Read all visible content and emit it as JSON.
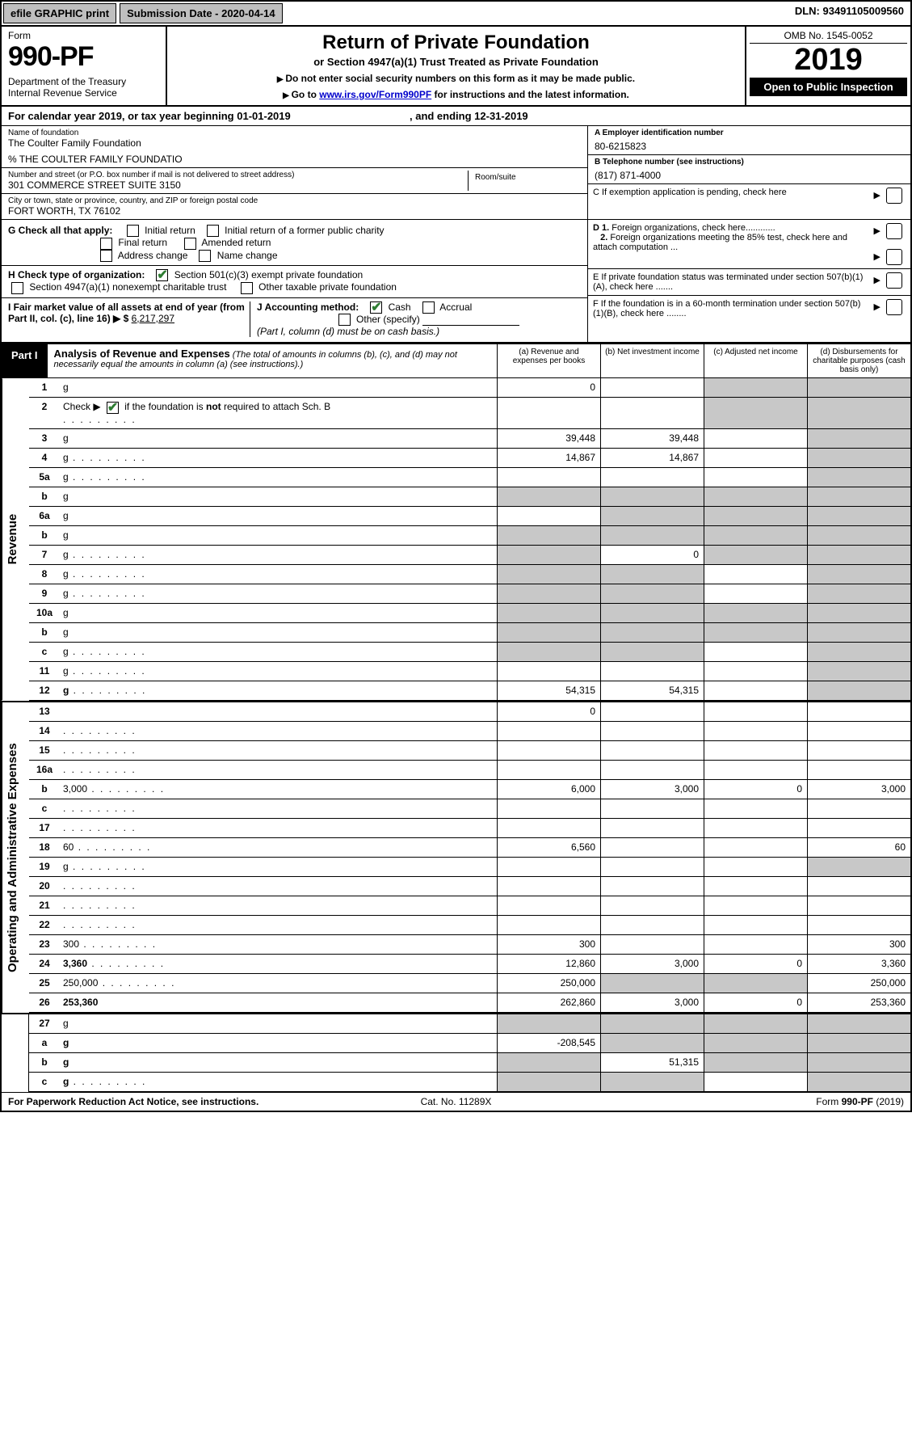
{
  "topbar": {
    "efile": "efile GRAPHIC print",
    "subdate_label": "Submission Date - 2020-04-14",
    "dln": "DLN: 93491105009560"
  },
  "header": {
    "form_word": "Form",
    "form_number": "990-PF",
    "dept": "Department of the Treasury\nInternal Revenue Service",
    "title": "Return of Private Foundation",
    "subtitle": "or Section 4947(a)(1) Trust Treated as Private Foundation",
    "note1": "Do not enter social security numbers on this form as it may be made public.",
    "note2_pre": "Go to ",
    "note2_link": "www.irs.gov/Form990PF",
    "note2_post": " for instructions and the latest information.",
    "omb": "OMB No. 1545-0052",
    "year": "2019",
    "open": "Open to Public Inspection"
  },
  "calyear": {
    "pre": "For calendar year 2019, or tax year beginning ",
    "begin": "01-01-2019",
    "mid": ", and ending ",
    "end": "12-31-2019"
  },
  "info": {
    "name_label": "Name of foundation",
    "name": "The Coulter Family Foundation",
    "care_of": "% THE COULTER FAMILY FOUNDATIO",
    "addr_label": "Number and street (or P.O. box number if mail is not delivered to street address)",
    "addr": "301 COMMERCE STREET SUITE 3150",
    "room_label": "Room/suite",
    "city_label": "City or town, state or province, country, and ZIP or foreign postal code",
    "city": "FORT WORTH, TX  76102",
    "ein_label": "A Employer identification number",
    "ein": "80-6215823",
    "phone_label": "B Telephone number (see instructions)",
    "phone": "(817) 871-4000",
    "c_label": "C If exemption application is pending, check here"
  },
  "checks": {
    "g_label": "G Check all that apply:",
    "g_items": [
      "Initial return",
      "Initial return of a former public charity",
      "Final return",
      "Amended return",
      "Address change",
      "Name change"
    ],
    "h_label": "H Check type of organization:",
    "h_items": [
      "Section 501(c)(3) exempt private foundation",
      "Section 4947(a)(1) nonexempt charitable trust",
      "Other taxable private foundation"
    ],
    "i_label": "I Fair market value of all assets at end of year (from Part II, col. (c), line 16) ▶ $",
    "i_val": "6,217,297",
    "j_label": "J Accounting method:",
    "j_items": [
      "Cash",
      "Accrual",
      "Other (specify)"
    ],
    "j_note": "(Part I, column (d) must be on cash basis.)",
    "d1": "D 1. Foreign organizations, check here............",
    "d2": "2. Foreign organizations meeting the 85% test, check here and attach computation ...",
    "e": "E  If private foundation status was terminated under section 507(b)(1)(A), check here .......",
    "f": "F  If the foundation is in a 60-month termination under section 507(b)(1)(B), check here ........"
  },
  "part1": {
    "badge": "Part I",
    "title": "Analysis of Revenue and Expenses",
    "title_note": "(The total of amounts in columns (b), (c), and (d) may not necessarily equal the amounts in column (a) (see instructions).)",
    "col_a": "(a)   Revenue and expenses per books",
    "col_b": "(b)  Net investment income",
    "col_c": "(c)  Adjusted net income",
    "col_d": "(d)  Disbursements for charitable purposes (cash basis only)"
  },
  "vlabels": {
    "revenue": "Revenue",
    "expenses": "Operating and Administrative Expenses"
  },
  "rows": [
    {
      "n": "1",
      "d": "g",
      "a": "0",
      "b": "",
      "c": "g"
    },
    {
      "n": "2",
      "d": "g",
      "dots": true,
      "a": "",
      "b": "",
      "c": "g",
      "checked": true
    },
    {
      "n": "3",
      "d": "g",
      "a": "39,448",
      "b": "39,448",
      "c": ""
    },
    {
      "n": "4",
      "d": "g",
      "dots": true,
      "a": "14,867",
      "b": "14,867",
      "c": ""
    },
    {
      "n": "5a",
      "d": "g",
      "dots": true,
      "a": "",
      "b": "",
      "c": ""
    },
    {
      "n": "b",
      "d": "g",
      "a": "g",
      "b": "g",
      "c": "g"
    },
    {
      "n": "6a",
      "d": "g",
      "a": "",
      "b": "g",
      "c": "g"
    },
    {
      "n": "b",
      "d": "g",
      "a": "g",
      "b": "g",
      "c": "g"
    },
    {
      "n": "7",
      "d": "g",
      "dots": true,
      "a": "g",
      "b": "0",
      "c": "g"
    },
    {
      "n": "8",
      "d": "g",
      "dots": true,
      "a": "g",
      "b": "g",
      "c": ""
    },
    {
      "n": "9",
      "d": "g",
      "dots": true,
      "a": "g",
      "b": "g",
      "c": ""
    },
    {
      "n": "10a",
      "d": "g",
      "a": "g",
      "b": "g",
      "c": "g"
    },
    {
      "n": "b",
      "d": "g",
      "a": "g",
      "b": "g",
      "c": "g"
    },
    {
      "n": "c",
      "d": "g",
      "dots": true,
      "a": "g",
      "b": "g",
      "c": ""
    },
    {
      "n": "11",
      "d": "g",
      "dots": true,
      "a": "",
      "b": "",
      "c": ""
    },
    {
      "n": "12",
      "d": "g",
      "dots": true,
      "bold": true,
      "a": "54,315",
      "b": "54,315",
      "c": ""
    }
  ],
  "rows2": [
    {
      "n": "13",
      "d": "",
      "a": "0",
      "b": "",
      "c": ""
    },
    {
      "n": "14",
      "d": "",
      "dots": true,
      "a": "",
      "b": "",
      "c": ""
    },
    {
      "n": "15",
      "d": "",
      "dots": true,
      "a": "",
      "b": "",
      "c": ""
    },
    {
      "n": "16a",
      "d": "",
      "dots": true,
      "a": "",
      "b": "",
      "c": ""
    },
    {
      "n": "b",
      "d": "3,000",
      "dots": true,
      "a": "6,000",
      "b": "3,000",
      "c": "0"
    },
    {
      "n": "c",
      "d": "",
      "dots": true,
      "a": "",
      "b": "",
      "c": ""
    },
    {
      "n": "17",
      "d": "",
      "dots": true,
      "a": "",
      "b": "",
      "c": ""
    },
    {
      "n": "18",
      "d": "60",
      "dots": true,
      "a": "6,560",
      "b": "",
      "c": ""
    },
    {
      "n": "19",
      "d": "g",
      "dots": true,
      "a": "",
      "b": "",
      "c": ""
    },
    {
      "n": "20",
      "d": "",
      "dots": true,
      "a": "",
      "b": "",
      "c": ""
    },
    {
      "n": "21",
      "d": "",
      "dots": true,
      "a": "",
      "b": "",
      "c": ""
    },
    {
      "n": "22",
      "d": "",
      "dots": true,
      "a": "",
      "b": "",
      "c": ""
    },
    {
      "n": "23",
      "d": "300",
      "dots": true,
      "a": "300",
      "b": "",
      "c": ""
    },
    {
      "n": "24",
      "d": "3,360",
      "dots": true,
      "bold": true,
      "a": "12,860",
      "b": "3,000",
      "c": "0"
    },
    {
      "n": "25",
      "d": "250,000",
      "dots": true,
      "a": "250,000",
      "b": "g",
      "c": "g"
    },
    {
      "n": "26",
      "d": "253,360",
      "bold": true,
      "a": "262,860",
      "b": "3,000",
      "c": "0"
    }
  ],
  "rows3": [
    {
      "n": "27",
      "d": "g",
      "a": "g",
      "b": "g",
      "c": "g"
    },
    {
      "n": "a",
      "d": "g",
      "bold": true,
      "a": "-208,545",
      "b": "g",
      "c": "g"
    },
    {
      "n": "b",
      "d": "g",
      "bold": true,
      "a": "g",
      "b": "51,315",
      "c": "g"
    },
    {
      "n": "c",
      "d": "g",
      "bold": true,
      "dots": true,
      "a": "g",
      "b": "g",
      "c": ""
    }
  ],
  "footer": {
    "left": "For Paperwork Reduction Act Notice, see instructions.",
    "mid": "Cat. No. 11289X",
    "right": "Form 990-PF (2019)"
  }
}
